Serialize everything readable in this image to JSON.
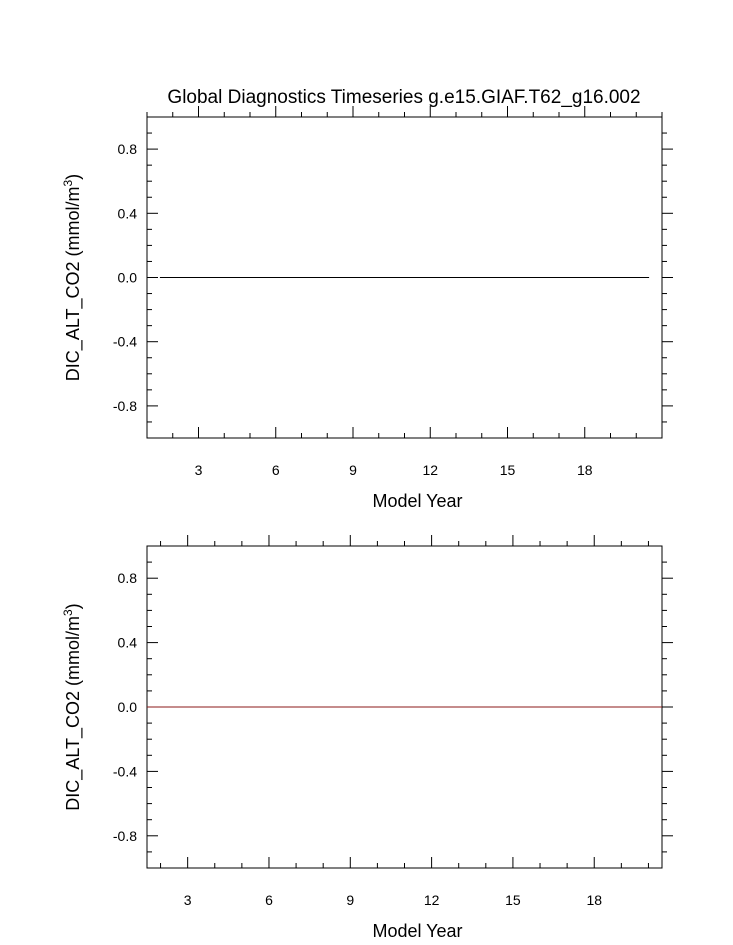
{
  "page": {
    "title": "Global Diagnostics Timeseries g.e15.GIAF.T62_g16.002"
  },
  "chart_data": [
    {
      "type": "line",
      "title": "Global Diagnostics Timeseries g.e15.GIAF.T62_g16.002",
      "xlabel": "Model Year",
      "ylabel": "DIC_ALT_CO2 (mmol/m",
      "ylabel_sup": "3",
      "ylabel_close": ")",
      "xlim": [
        1.0,
        21.0
      ],
      "ylim": [
        -1.0,
        1.0
      ],
      "xticks": [
        3,
        6,
        9,
        12,
        15,
        18
      ],
      "xtick_labels": [
        "3",
        "6",
        "9",
        "12",
        "15",
        "18"
      ],
      "yticks": [
        0.8,
        0.4,
        0.0,
        -0.4,
        -0.8
      ],
      "ytick_labels": [
        "0.8",
        "0.4",
        "0.0",
        "-0.4",
        "-0.8"
      ],
      "grid": false,
      "series": [
        {
          "color": "#000000",
          "x": [
            1.5,
            2,
            3,
            4,
            5,
            6,
            7,
            8,
            9,
            10,
            11,
            12,
            13,
            14,
            15,
            16,
            17,
            18,
            19,
            20,
            20.5
          ],
          "y": [
            0,
            0,
            0,
            0,
            0,
            0,
            0,
            0,
            0,
            0,
            0,
            0,
            0,
            0,
            0,
            0,
            0,
            0,
            0,
            0,
            0
          ]
        }
      ]
    },
    {
      "type": "line",
      "title": "",
      "xlabel": "Model Year",
      "ylabel": "DIC_ALT_CO2 (mmol/m",
      "ylabel_sup": "3",
      "ylabel_close": ")",
      "xlim": [
        1.5,
        20.5
      ],
      "ylim": [
        -1.0,
        1.0
      ],
      "xticks": [
        3,
        6,
        9,
        12,
        15,
        18
      ],
      "xtick_labels": [
        "3",
        "6",
        "9",
        "12",
        "15",
        "18"
      ],
      "yticks": [
        0.8,
        0.4,
        0.0,
        -0.4,
        -0.8
      ],
      "ytick_labels": [
        "0.8",
        "0.4",
        "0.0",
        "-0.4",
        "-0.8"
      ],
      "grid": false,
      "series": [
        {
          "color": "#8b1a1a",
          "x": [
            1.5,
            2,
            3,
            4,
            5,
            6,
            7,
            8,
            9,
            10,
            11,
            12,
            13,
            14,
            15,
            16,
            17,
            18,
            19,
            20,
            20.5
          ],
          "y": [
            0,
            0,
            0,
            0,
            0,
            0,
            0,
            0,
            0,
            0,
            0,
            0,
            0,
            0,
            0,
            0,
            0,
            0,
            0,
            0,
            0
          ]
        }
      ]
    }
  ]
}
